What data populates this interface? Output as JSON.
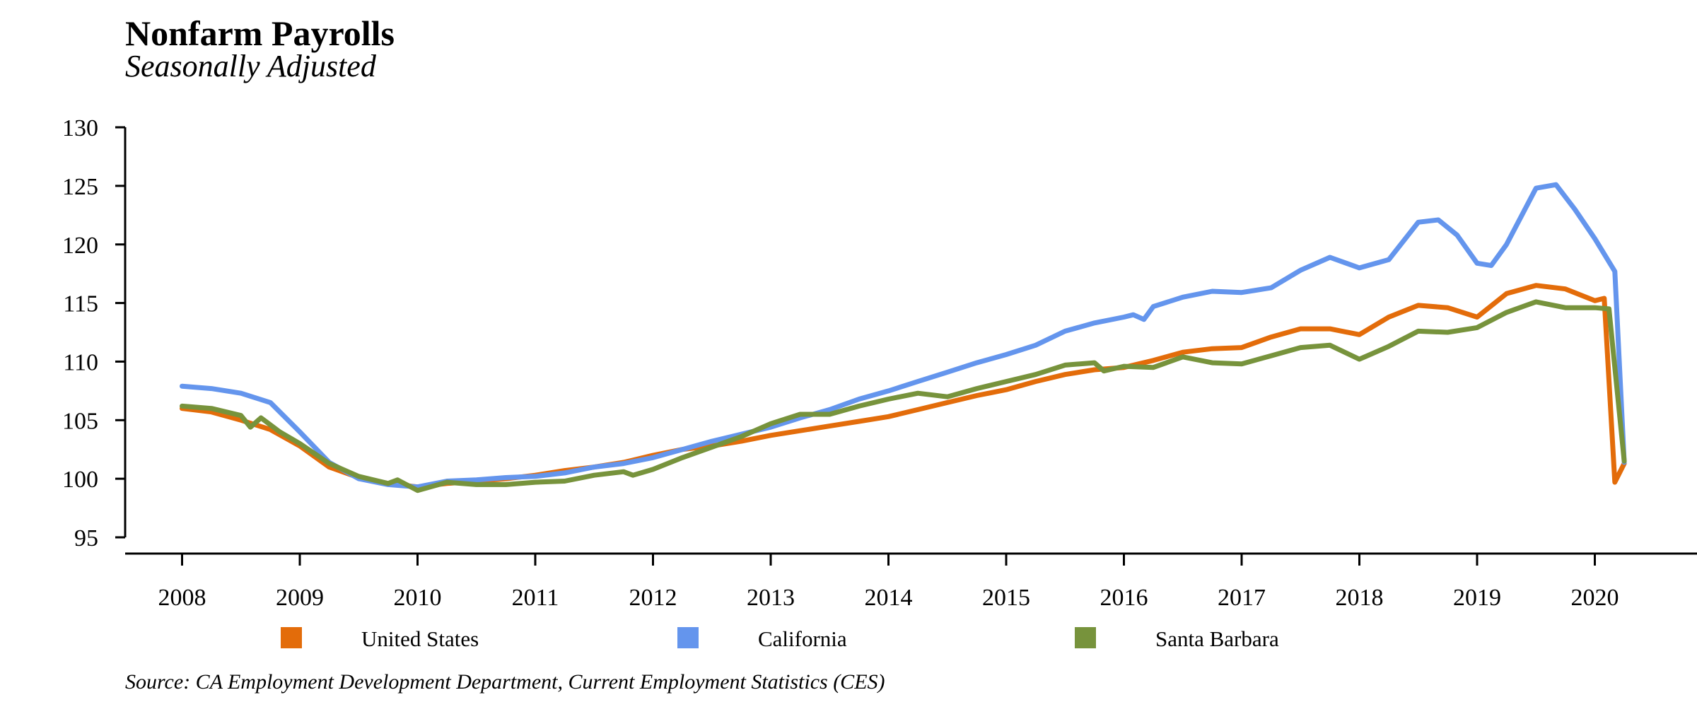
{
  "chart_data": {
    "type": "line",
    "title": "Nonfarm Payrolls",
    "subtitle": "Seasonally Adjusted",
    "source": "Source: CA Employment Development Department, Current Employment Statistics (CES)",
    "x_ticks": [
      "2008",
      "2009",
      "2010",
      "2011",
      "2012",
      "2013",
      "2014",
      "2015",
      "2016",
      "2017",
      "2018",
      "2019",
      "2020"
    ],
    "y_ticks": [
      95,
      100,
      105,
      110,
      115,
      120,
      125,
      130
    ],
    "xlim": [
      2008,
      2021.75
    ],
    "ylim": [
      95,
      130
    ],
    "grid": false,
    "legend_position": "bottom",
    "series": [
      {
        "name": "United States",
        "color": "#E36C0A",
        "x": [
          2008.0,
          2008.25,
          2008.5,
          2008.75,
          2009.0,
          2009.25,
          2009.5,
          2009.75,
          2010.0,
          2010.25,
          2010.5,
          2010.75,
          2011.0,
          2011.25,
          2011.5,
          2011.75,
          2012.0,
          2012.25,
          2012.5,
          2012.75,
          2013.0,
          2013.25,
          2013.5,
          2013.75,
          2014.0,
          2014.25,
          2014.5,
          2014.75,
          2015.0,
          2015.25,
          2015.5,
          2015.75,
          2016.0,
          2016.25,
          2016.5,
          2016.75,
          2017.0,
          2017.25,
          2017.5,
          2017.75,
          2018.0,
          2018.25,
          2018.5,
          2018.75,
          2019.0,
          2019.25,
          2019.5,
          2019.75,
          2020.0,
          2020.08,
          2020.17,
          2020.25
        ],
        "values": [
          106.0,
          105.7,
          105.0,
          104.2,
          102.8,
          101.0,
          100.1,
          99.6,
          99.3,
          99.6,
          99.8,
          100.0,
          100.3,
          100.7,
          101.0,
          101.4,
          102.0,
          102.5,
          102.8,
          103.2,
          103.7,
          104.1,
          104.5,
          104.9,
          105.3,
          105.9,
          106.5,
          107.1,
          107.6,
          108.3,
          108.9,
          109.3,
          109.5,
          110.1,
          110.8,
          111.1,
          111.2,
          112.1,
          112.8,
          112.8,
          112.3,
          113.8,
          114.8,
          114.6,
          113.8,
          115.8,
          116.5,
          116.2,
          115.2,
          115.4,
          99.7,
          101.3
        ]
      },
      {
        "name": "California",
        "color": "#6495ED",
        "x": [
          2008.0,
          2008.25,
          2008.5,
          2008.75,
          2009.0,
          2009.25,
          2009.5,
          2009.75,
          2010.0,
          2010.25,
          2010.5,
          2010.75,
          2011.0,
          2011.25,
          2011.5,
          2011.75,
          2012.0,
          2012.25,
          2012.5,
          2012.75,
          2013.0,
          2013.25,
          2013.5,
          2013.75,
          2014.0,
          2014.25,
          2014.5,
          2014.75,
          2015.0,
          2015.25,
          2015.5,
          2015.75,
          2016.0,
          2016.08,
          2016.17,
          2016.25,
          2016.5,
          2016.75,
          2017.0,
          2017.25,
          2017.5,
          2017.75,
          2018.0,
          2018.25,
          2018.5,
          2018.67,
          2018.83,
          2019.0,
          2019.12,
          2019.25,
          2019.5,
          2019.67,
          2019.83,
          2020.0,
          2020.17,
          2020.25
        ],
        "values": [
          107.9,
          107.7,
          107.3,
          106.5,
          104.0,
          101.4,
          100.0,
          99.5,
          99.3,
          99.8,
          99.9,
          100.1,
          100.2,
          100.5,
          101.0,
          101.3,
          101.8,
          102.5,
          103.2,
          103.8,
          104.4,
          105.2,
          105.9,
          106.8,
          107.5,
          108.3,
          109.1,
          109.9,
          110.6,
          111.4,
          112.6,
          113.3,
          113.8,
          114.0,
          113.6,
          114.7,
          115.5,
          116.0,
          115.9,
          116.3,
          117.8,
          118.9,
          118.0,
          118.7,
          121.9,
          122.1,
          120.8,
          118.4,
          118.2,
          120.0,
          124.8,
          125.1,
          123.0,
          120.5,
          117.7,
          101.4
        ]
      },
      {
        "name": "Santa Barbara",
        "color": "#77933C",
        "x": [
          2008.0,
          2008.25,
          2008.5,
          2008.58,
          2008.67,
          2008.83,
          2009.0,
          2009.25,
          2009.5,
          2009.75,
          2009.83,
          2010.0,
          2010.25,
          2010.5,
          2010.75,
          2011.0,
          2011.25,
          2011.5,
          2011.75,
          2011.83,
          2012.0,
          2012.25,
          2012.5,
          2012.75,
          2013.0,
          2013.25,
          2013.5,
          2013.75,
          2014.0,
          2014.25,
          2014.5,
          2014.75,
          2015.0,
          2015.25,
          2015.5,
          2015.75,
          2015.83,
          2016.0,
          2016.25,
          2016.5,
          2016.75,
          2017.0,
          2017.25,
          2017.5,
          2017.75,
          2018.0,
          2018.25,
          2018.5,
          2018.75,
          2019.0,
          2019.25,
          2019.5,
          2019.75,
          2020.0,
          2020.12,
          2020.25
        ],
        "values": [
          106.2,
          106.0,
          105.4,
          104.4,
          105.2,
          104.0,
          103.0,
          101.3,
          100.2,
          99.6,
          99.9,
          99.0,
          99.7,
          99.5,
          99.5,
          99.7,
          99.8,
          100.3,
          100.6,
          100.3,
          100.8,
          101.8,
          102.7,
          103.6,
          104.7,
          105.5,
          105.5,
          106.2,
          106.8,
          107.3,
          107.0,
          107.7,
          108.3,
          108.9,
          109.7,
          109.9,
          109.2,
          109.6,
          109.5,
          110.4,
          109.9,
          109.8,
          110.5,
          111.2,
          111.4,
          110.2,
          111.3,
          112.6,
          112.5,
          112.9,
          114.2,
          115.1,
          114.6,
          114.6,
          114.5,
          101.5
        ]
      }
    ]
  }
}
